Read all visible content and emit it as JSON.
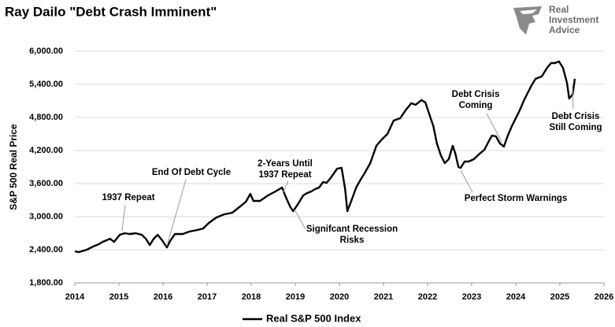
{
  "logo": [
    "Real",
    "Investment",
    "Advice"
  ],
  "chart_data": {
    "type": "line",
    "title": "Ray Dailo \"Debt Crash Imminent\"",
    "y_label": "S&P 500 Real Price",
    "x": [
      2014,
      2014.09,
      2014.27,
      2014.41,
      2014.54,
      2014.63,
      2014.8,
      2014.89,
      2015.02,
      2015.13,
      2015.25,
      2015.38,
      2015.52,
      2015.61,
      2015.7,
      2015.79,
      2015.88,
      2015.98,
      2016.09,
      2016.16,
      2016.27,
      2016.45,
      2016.59,
      2016.77,
      2016.91,
      2017.04,
      2017.21,
      2017.39,
      2017.57,
      2017.75,
      2017.88,
      2017.98,
      2018.05,
      2018.2,
      2018.38,
      2018.55,
      2018.7,
      2018.77,
      2018.88,
      2018.95,
      2019.05,
      2019.18,
      2019.27,
      2019.36,
      2019.45,
      2019.54,
      2019.63,
      2019.71,
      2019.8,
      2019.95,
      2020.05,
      2020.13,
      2020.18,
      2020.27,
      2020.38,
      2020.48,
      2020.57,
      2020.7,
      2020.84,
      2020.96,
      2021.09,
      2021.23,
      2021.38,
      2021.5,
      2021.63,
      2021.73,
      2021.86,
      2021.95,
      2022.04,
      2022.13,
      2022.21,
      2022.3,
      2022.39,
      2022.48,
      2022.57,
      2022.63,
      2022.7,
      2022.75,
      2022.84,
      2022.93,
      2023.05,
      2023.16,
      2023.29,
      2023.38,
      2023.46,
      2023.55,
      2023.64,
      2023.73,
      2023.82,
      2023.91,
      2024,
      2024.09,
      2024.18,
      2024.27,
      2024.36,
      2024.45,
      2024.59,
      2024.71,
      2024.8,
      2024.89,
      2024.98,
      2025.07,
      2025.16,
      2025.21,
      2025.29,
      2025.34
    ],
    "series": [
      {
        "name": "Real S&P 500 Index",
        "color": "#000000",
        "values": [
          2371,
          2357,
          2400,
          2457,
          2500,
          2543,
          2600,
          2543,
          2671,
          2700,
          2686,
          2700,
          2671,
          2600,
          2486,
          2600,
          2671,
          2571,
          2443,
          2557,
          2686,
          2686,
          2729,
          2757,
          2786,
          2886,
          2986,
          3043,
          3071,
          3186,
          3271,
          3414,
          3286,
          3286,
          3386,
          3457,
          3529,
          3386,
          3186,
          3100,
          3214,
          3386,
          3429,
          3457,
          3500,
          3529,
          3629,
          3614,
          3700,
          3871,
          3886,
          3500,
          3100,
          3286,
          3529,
          3671,
          3786,
          3971,
          4286,
          4400,
          4500,
          4743,
          4786,
          4929,
          5057,
          5029,
          5114,
          5071,
          4857,
          4643,
          4329,
          4114,
          3971,
          4043,
          4286,
          4143,
          3900,
          3886,
          4000,
          4000,
          4043,
          4129,
          4214,
          4357,
          4471,
          4457,
          4329,
          4271,
          4471,
          4643,
          4786,
          4929,
          5100,
          5243,
          5386,
          5500,
          5543,
          5700,
          5786,
          5786,
          5814,
          5700,
          5429,
          5143,
          5214,
          5500
        ]
      }
    ],
    "xlim": [
      2014,
      2026
    ],
    "xticks": [
      2014,
      2015,
      2016,
      2017,
      2018,
      2019,
      2020,
      2021,
      2022,
      2023,
      2024,
      2025,
      2026
    ],
    "ylim": [
      1800,
      6000
    ],
    "yticks": [
      {
        "value": 1800,
        "label": "1,800.00"
      },
      {
        "value": 2400,
        "label": "2,400.00"
      },
      {
        "value": 3000,
        "label": "3,000.00"
      },
      {
        "value": 3600,
        "label": "3,600.00"
      },
      {
        "value": 4200,
        "label": "4,200.00"
      },
      {
        "value": 4800,
        "label": "4,800.00"
      },
      {
        "value": 5400,
        "label": "5,400.00"
      },
      {
        "value": 6000,
        "label": "6,000.00"
      }
    ],
    "grid": true,
    "legend": "bottom",
    "annotations": [
      {
        "lines": [
          "1937 Repeat"
        ]
      },
      {
        "lines": [
          "End Of Debt Cycle"
        ]
      },
      {
        "lines": [
          "2-Years Until",
          "1937 Repeat"
        ]
      },
      {
        "lines": [
          "Signifcant Recession",
          "Risks"
        ]
      },
      {
        "lines": [
          "Debt Crisis",
          "Coming"
        ]
      },
      {
        "lines": [
          "Perfect Storm Warnings"
        ]
      },
      {
        "lines": [
          "Debt Crisis",
          "Still Coming"
        ]
      }
    ]
  }
}
